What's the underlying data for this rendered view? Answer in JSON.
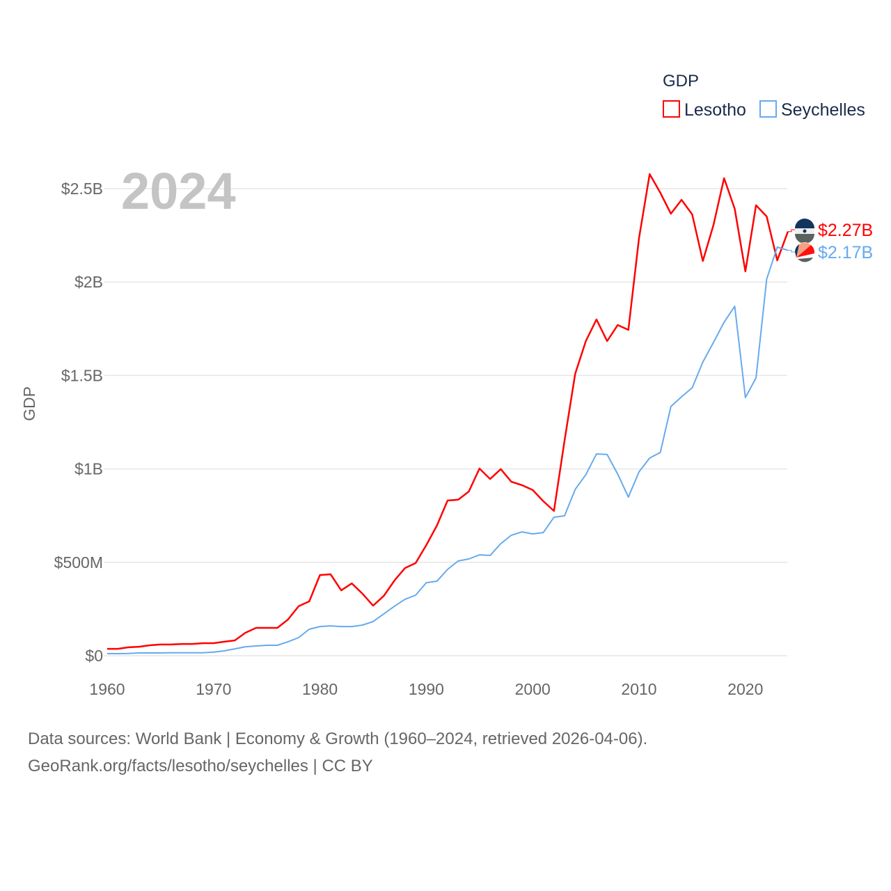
{
  "chart_data": {
    "type": "line",
    "title": "GDP",
    "year_label": "2024",
    "ylabel": "GDP",
    "xlabel": "",
    "xlim": [
      1960,
      2024
    ],
    "ylim": [
      0,
      2.7
    ],
    "y_unit": "billions USD",
    "grid": true,
    "legend_placement": "top-right",
    "x_ticks": [
      1960,
      1970,
      1980,
      1990,
      2000,
      2010,
      2020
    ],
    "x_tick_labels": [
      "1960",
      "1970",
      "1980",
      "1990",
      "2000",
      "2010",
      "2020"
    ],
    "y_ticks": [
      0,
      0.5,
      1,
      1.5,
      2,
      2.5
    ],
    "y_tick_labels": [
      "$0",
      "$500M",
      "$1B",
      "$1.5B",
      "$2B",
      "$2.5B"
    ],
    "x": [
      1960,
      1961,
      1962,
      1963,
      1964,
      1965,
      1966,
      1967,
      1968,
      1969,
      1970,
      1971,
      1972,
      1973,
      1974,
      1975,
      1976,
      1977,
      1978,
      1979,
      1980,
      1981,
      1982,
      1983,
      1984,
      1985,
      1986,
      1987,
      1988,
      1989,
      1990,
      1991,
      1992,
      1993,
      1994,
      1995,
      1996,
      1997,
      1998,
      1999,
      2000,
      2001,
      2002,
      2003,
      2004,
      2005,
      2006,
      2007,
      2008,
      2009,
      2010,
      2011,
      2012,
      2013,
      2014,
      2015,
      2016,
      2017,
      2018,
      2019,
      2020,
      2021,
      2022,
      2023,
      2024
    ],
    "series": [
      {
        "name": "Lesotho",
        "color": "#ff0000",
        "end_label": "$2.27B",
        "values": [
          0.037,
          0.037,
          0.045,
          0.048,
          0.056,
          0.06,
          0.06,
          0.063,
          0.063,
          0.067,
          0.067,
          0.075,
          0.082,
          0.123,
          0.149,
          0.149,
          0.149,
          0.194,
          0.265,
          0.291,
          0.432,
          0.436,
          0.35,
          0.387,
          0.332,
          0.268,
          0.32,
          0.402,
          0.469,
          0.496,
          0.592,
          0.697,
          0.831,
          0.835,
          0.879,
          1.002,
          0.946,
          0.999,
          0.931,
          0.913,
          0.887,
          0.827,
          0.775,
          1.151,
          1.509,
          1.684,
          1.8,
          1.684,
          1.77,
          1.744,
          2.235,
          2.578,
          2.478,
          2.366,
          2.44,
          2.362,
          2.113,
          2.306,
          2.556,
          2.392,
          2.057,
          2.411,
          2.351,
          2.116,
          2.27
        ]
      },
      {
        "name": "Seychelles",
        "color": "#66aaee",
        "end_label": "$2.17B",
        "values": [
          0.011,
          0.011,
          0.012,
          0.015,
          0.015,
          0.015,
          0.016,
          0.016,
          0.016,
          0.016,
          0.019,
          0.026,
          0.037,
          0.048,
          0.052,
          0.056,
          0.056,
          0.075,
          0.097,
          0.142,
          0.156,
          0.16,
          0.156,
          0.156,
          0.164,
          0.183,
          0.224,
          0.265,
          0.302,
          0.324,
          0.391,
          0.399,
          0.462,
          0.507,
          0.518,
          0.54,
          0.537,
          0.6,
          0.645,
          0.663,
          0.652,
          0.659,
          0.741,
          0.749,
          0.89,
          0.969,
          1.08,
          1.077,
          0.972,
          0.849,
          0.984,
          1.058,
          1.088,
          1.334,
          1.386,
          1.434,
          1.572,
          1.677,
          1.785,
          1.87,
          1.382,
          1.487,
          2.016,
          2.187,
          2.17
        ]
      }
    ]
  },
  "footer": {
    "line1": "Data sources: World Bank | Economy & Growth (1960–2024, retrieved 2026-04-06).",
    "line2": "GeoRank.org/facts/lesotho/seychelles | CC BY"
  }
}
